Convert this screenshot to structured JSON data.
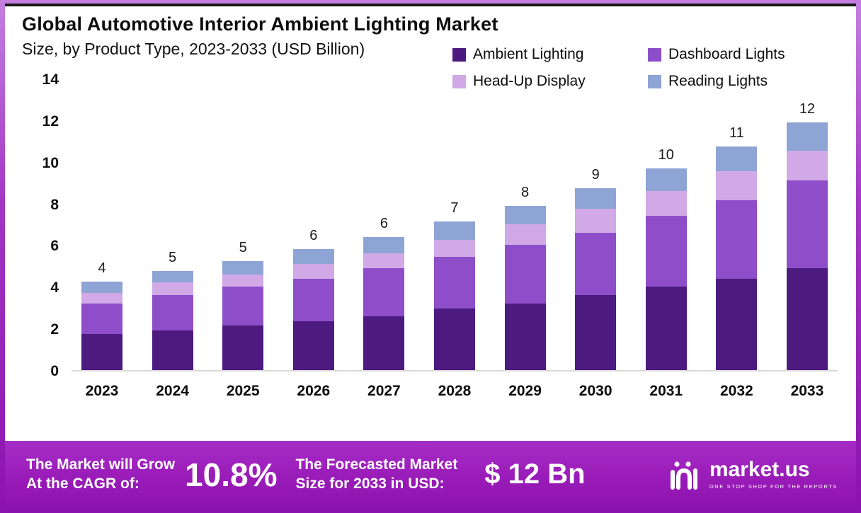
{
  "header": {
    "title": "Global Automotive Interior Ambient Lighting Market",
    "subtitle": "Size, by Product Type, 2023-2033 (USD Billion)"
  },
  "legend": {
    "items": [
      {
        "label": "Ambient Lighting",
        "color": "#4d1a7f"
      },
      {
        "label": "Dashboard Lights",
        "color": "#8e4ec9"
      },
      {
        "label": "Head-Up Display",
        "color": "#d0a9e6"
      },
      {
        "label": "Reading Lights",
        "color": "#8da4d4"
      }
    ]
  },
  "chart_data": {
    "type": "bar",
    "stacked": true,
    "title": "Global Automotive Interior Ambient Lighting Market Size, by Product Type, 2023-2033 (USD Billion)",
    "xlabel": "",
    "ylabel": "USD Billion",
    "categories": [
      "2023",
      "2024",
      "2025",
      "2026",
      "2027",
      "2028",
      "2029",
      "2030",
      "2031",
      "2032",
      "2033"
    ],
    "series": [
      {
        "name": "Ambient Lighting",
        "values": [
          1.75,
          1.9,
          2.15,
          2.35,
          2.6,
          2.95,
          3.2,
          3.6,
          4.0,
          4.4,
          4.9
        ]
      },
      {
        "name": "Dashboard Lights",
        "values": [
          1.45,
          1.7,
          1.85,
          2.05,
          2.3,
          2.5,
          2.8,
          3.0,
          3.4,
          3.75,
          4.2
        ]
      },
      {
        "name": "Head-Up Display",
        "values": [
          0.5,
          0.6,
          0.6,
          0.7,
          0.7,
          0.8,
          1.0,
          1.15,
          1.2,
          1.4,
          1.45
        ]
      },
      {
        "name": "Reading Lights",
        "values": [
          0.55,
          0.55,
          0.65,
          0.7,
          0.8,
          0.9,
          0.9,
          1.0,
          1.1,
          1.2,
          1.35
        ]
      }
    ],
    "totals_labels": [
      "4",
      "5",
      "5",
      "6",
      "6",
      "7",
      "8",
      "9",
      "10",
      "11",
      "12"
    ],
    "ylim": [
      0,
      14
    ],
    "yticks": [
      0,
      2,
      4,
      6,
      8,
      10,
      12,
      14
    ],
    "grid": false,
    "legend_position": "top-right"
  },
  "banner": {
    "cagr_label_line1": "The Market will Grow",
    "cagr_label_line2": "At the CAGR of:",
    "cagr_value": "10.8%",
    "forecast_label_line1": "The Forecasted Market",
    "forecast_label_line2": "Size for 2033 in USD:",
    "forecast_value": "$ 12 Bn",
    "accent_color": "#9a1cb8"
  },
  "logo": {
    "name": "market.us",
    "tagline": "ONE STOP SHOP FOR THE REPORTS"
  }
}
